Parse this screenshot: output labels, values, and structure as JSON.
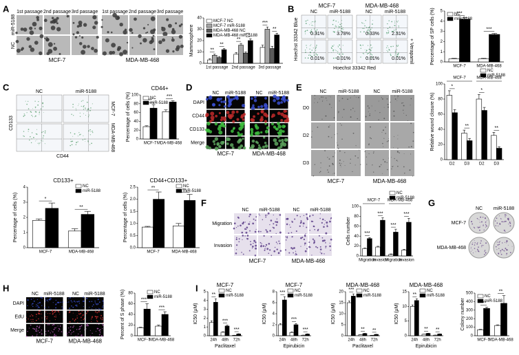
{
  "panel_letters": [
    "A",
    "B",
    "C",
    "D",
    "E",
    "F",
    "G",
    "H",
    "I"
  ],
  "photos": {
    "A": {
      "cols": [
        "1st passage",
        "2nd passage",
        "3rd passage",
        "1st passage",
        "2nd passage",
        "3rd passage"
      ],
      "rows": [
        "miR-5188",
        "NC"
      ],
      "cell_lines": [
        "MCF-7",
        "MDA-MB-468"
      ]
    },
    "B": {
      "cols": [
        "NC",
        "miR-5188",
        "NC",
        "miR-5188"
      ],
      "cell_lines": [
        "MCF-7",
        "MDA-MB-468"
      ],
      "percents": [
        [
          "0.31%",
          "3.78%",
          "0.33%",
          "2.31%"
        ],
        [
          "0.01%",
          "0.01%",
          "0.01%",
          "0.01%"
        ]
      ],
      "y_label": "Hoechst 33342 Blue",
      "x_label": "Hoechst 33342 Red",
      "row_label": "+ Verapamil"
    },
    "C": {
      "cols": [
        "NC",
        "miR-5188"
      ],
      "rows": [
        "MCF-7",
        "MDA-MB-468"
      ],
      "y_label": "CD133",
      "x_label": "CD44"
    },
    "D": {
      "cols": [
        "NC",
        "miR-5188",
        "NC",
        "miR-5188"
      ],
      "rows": [
        "DAPI",
        "CD44",
        "CD133",
        "Merge"
      ],
      "cell_lines": [
        "MCF-7",
        "MDA-MB-468"
      ]
    },
    "E": {
      "cols": [
        "NC",
        "miR-5188",
        "NC",
        "miR-5188"
      ],
      "rows": [
        "D0",
        "D2",
        "D3"
      ],
      "cell_lines": [
        "MCF-7",
        "MDA-MB-468"
      ]
    },
    "F": {
      "cols": [
        "NC",
        "miR-5188",
        "NC",
        "miR-5188"
      ],
      "rows": [
        "Migration",
        "Invasion"
      ],
      "cell_lines": [
        "MCF-7",
        "MDA-MB-468"
      ]
    },
    "G": {
      "cols": [
        "NC",
        "miR-5188"
      ],
      "rows": [
        "MCF-7",
        "MDA-MB-468"
      ]
    },
    "H": {
      "cols": [
        "NC",
        "miR-5188",
        "NC",
        "miR-5188"
      ],
      "rows": [
        "DAPI",
        "EdU",
        "Merge"
      ],
      "cell_lines": [
        "MCF-7",
        "MDA-MB-468"
      ]
    }
  },
  "chart_data": [
    {
      "type": "bar",
      "y_label": "Mammosphere",
      "categories": [
        "1st passage",
        "2nd passage",
        "3rd passage"
      ],
      "series": [
        {
          "name": "MCF-7 NC",
          "color": "#ffffff",
          "values": [
            3,
            8,
            14
          ],
          "errors": [
            1,
            1.5,
            2
          ]
        },
        {
          "name": "MCF-7 miR-5188",
          "color": "#a6a6a6",
          "values": [
            7,
            16,
            30
          ],
          "errors": [
            1,
            1.5,
            2
          ]
        },
        {
          "name": "MDA-MB-468 NC",
          "color": "#5a5a5a",
          "values": [
            5,
            9,
            13
          ],
          "errors": [
            1,
            1,
            2
          ]
        },
        {
          "name": "MDA-MB-468 miR-5188",
          "color": "#000000",
          "values": [
            12,
            20,
            25
          ],
          "errors": [
            1,
            1.5,
            1.5
          ]
        }
      ],
      "significance": [
        "**",
        "**",
        "**",
        "**",
        "***",
        "**"
      ],
      "ylim": [
        0,
        40
      ],
      "yticks": [
        0,
        10,
        20,
        30,
        40
      ],
      "legend": "top-left"
    },
    {
      "type": "bar",
      "y_label": "Percentage of SP cells (%)",
      "categories": [
        "MCF-7",
        "MDA-MB-468"
      ],
      "series": [
        {
          "name": "NC",
          "color": "#ffffff",
          "values": [
            0.3,
            0.3
          ],
          "errors": [
            0.05,
            0.05
          ]
        },
        {
          "name": "miR-5188",
          "color": "#000000",
          "values": [
            4.2,
            2.7
          ],
          "errors": [
            0.15,
            0.1
          ]
        }
      ],
      "significance": [
        "***",
        "***"
      ],
      "ylim": [
        0,
        5
      ],
      "yticks": [
        0,
        1,
        2,
        3,
        4,
        5
      ],
      "legend": "top-left"
    },
    {
      "type": "bar",
      "title": "CD44+",
      "y_label": "Percentage of cells (%)",
      "categories": [
        "MCF-7",
        "MDA-MB-468"
      ],
      "series": [
        {
          "name": "NC",
          "color": "#ffffff",
          "values": [
            28,
            62
          ],
          "errors": [
            2,
            4
          ]
        },
        {
          "name": "miR-5188",
          "color": "#000000",
          "values": [
            70,
            84
          ],
          "errors": [
            8,
            3
          ]
        }
      ],
      "significance": [
        "**",
        "***"
      ],
      "ylim": [
        0,
        100
      ],
      "yticks": [
        0,
        20,
        40,
        60,
        80,
        100
      ],
      "legend": "top-left"
    },
    {
      "type": "bar",
      "title": "CD133+",
      "y_label": "Percentage of cells (%)",
      "categories": [
        "MCF-7",
        "MDA-MB-468"
      ],
      "series": [
        {
          "name": "NC",
          "color": "#ffffff",
          "values": [
            1.8,
            1.1
          ],
          "errors": [
            0.1,
            0.15
          ]
        },
        {
          "name": "miR-5188",
          "color": "#000000",
          "values": [
            2.6,
            2.2
          ],
          "errors": [
            0.35,
            0.2
          ]
        }
      ],
      "significance": [
        "*",
        "**"
      ],
      "ylim": [
        0,
        4
      ],
      "yticks": [
        0,
        1,
        2,
        3,
        4
      ],
      "legend": "top-right"
    },
    {
      "type": "bar",
      "title": "CD44+CD133+",
      "y_label": "Percentage of cells (%)",
      "categories": [
        "MCF-7",
        "MDA-MB-468"
      ],
      "series": [
        {
          "name": "NC",
          "color": "#ffffff",
          "values": [
            0.85,
            0.9
          ],
          "errors": [
            0.03,
            0.1
          ]
        },
        {
          "name": "miR-5188",
          "color": "#000000",
          "values": [
            2.0,
            1.95
          ],
          "errors": [
            0.3,
            0.25
          ]
        }
      ],
      "significance": [
        "**",
        "**"
      ],
      "ylim": [
        0,
        2.5
      ],
      "yticks": [
        {
          "value": 0,
          "label": "0.0"
        },
        {
          "value": 0.5,
          "label": "0.5"
        },
        {
          "value": 1,
          "label": "1.0"
        },
        {
          "value": 1.5,
          "label": "1.5"
        },
        {
          "value": 2,
          "label": "2.0"
        },
        {
          "value": 2.5,
          "label": "2.5"
        }
      ],
      "legend": "top-right"
    },
    {
      "type": "bar",
      "y_label": "Relative wound closure (%)",
      "categories": [
        "D2",
        "D3",
        "D2",
        "D3"
      ],
      "groups": [
        "MCF-7",
        "MDA-MB-468"
      ],
      "series": [
        {
          "name": "NC",
          "color": "#ffffff",
          "values": [
            85,
            35,
            80,
            32
          ],
          "errors": [
            6,
            4,
            6,
            4
          ]
        },
        {
          "name": "miR-5188",
          "color": "#000000",
          "values": [
            62,
            25,
            65,
            15
          ],
          "errors": [
            4,
            3,
            4,
            2
          ]
        }
      ],
      "significance": [
        "*",
        "**",
        "*",
        "**"
      ],
      "ylim": [
        0,
        100
      ],
      "yticks": [
        0,
        20,
        40,
        60,
        80,
        100
      ],
      "legend": "top-right"
    },
    {
      "type": "bar",
      "y_label": "Cells number",
      "categories": [
        "Migration",
        "Invasion",
        "Migration",
        "Invasion"
      ],
      "groups": [
        "MCF-7",
        "MDA-MB-468"
      ],
      "series": [
        {
          "name": "NC",
          "color": "#ffffff",
          "values": [
            15,
            18,
            3,
            12
          ],
          "errors": [
            1,
            1.5,
            1,
            1.5
          ]
        },
        {
          "name": "miR-5188",
          "color": "#000000",
          "values": [
            35,
            72,
            48,
            68
          ],
          "errors": [
            2,
            5,
            6,
            8
          ]
        }
      ],
      "significance": [
        "***",
        "***",
        "***",
        "***"
      ],
      "ylim": [
        0,
        100
      ],
      "yticks": [
        0,
        20,
        40,
        60,
        80,
        100
      ],
      "legend": "top-right"
    },
    {
      "type": "bar",
      "y_label": "Percent of S phase (%)",
      "categories": [
        "MCF-7",
        "MDA-MB-468"
      ],
      "series": [
        {
          "name": "NC",
          "color": "#ffffff",
          "values": [
            15,
            18
          ],
          "errors": [
            1,
            2
          ]
        },
        {
          "name": "miR-5188",
          "color": "#000000",
          "values": [
            50,
            40
          ],
          "errors": [
            10,
            5
          ]
        }
      ],
      "significance": [
        "***",
        "***"
      ],
      "ylim": [
        0,
        80
      ],
      "yticks": [
        0,
        20,
        40,
        60,
        80
      ],
      "legend": "top-right"
    },
    {
      "type": "bar",
      "title": "MCF-7",
      "y_label": "IC50 (μM)",
      "x_label": "Paclitaxel",
      "categories": [
        "24h",
        "48h",
        "72h"
      ],
      "series": [
        {
          "name": "NC",
          "color": "#ffffff",
          "values": [
            1.5,
            0.4,
            0.05
          ],
          "errors": [
            0.2,
            0.05,
            0.01
          ]
        },
        {
          "name": "miR-5188",
          "color": "#000000",
          "values": [
            3.8,
            1.1,
            0.2
          ],
          "errors": [
            0.4,
            0.1,
            0.03
          ]
        }
      ],
      "significance": [
        "**",
        "***",
        "***"
      ],
      "ylim": [
        0,
        5
      ],
      "yticks": [
        0,
        1,
        2,
        3,
        4,
        5
      ],
      "legend": "top-right"
    },
    {
      "type": "bar",
      "title": "MCF-7",
      "y_label": "IC50 (μM)",
      "x_label": "Epirubicin",
      "categories": [
        "24h",
        "48h",
        "72h"
      ],
      "series": [
        {
          "name": "NC",
          "color": "#ffffff",
          "values": [
            2,
            0.6,
            0.1
          ],
          "errors": [
            0.2,
            0.1,
            0.02
          ]
        },
        {
          "name": "miR-5188",
          "color": "#000000",
          "values": [
            6.5,
            2.0,
            0.3
          ],
          "errors": [
            0.6,
            0.2,
            0.05
          ]
        }
      ],
      "significance": [
        "***",
        "***",
        "***"
      ],
      "ylim": [
        0,
        8
      ],
      "yticks": [
        0,
        2,
        4,
        6,
        8
      ],
      "legend": "top-right"
    },
    {
      "type": "bar",
      "title": "MDA-MB-468",
      "y_label": "IC50 (μM)",
      "x_label": "Paclitaxel",
      "categories": [
        "24h",
        "48h",
        "72h"
      ],
      "series": [
        {
          "name": "NC",
          "color": "#ffffff",
          "values": [
            15,
            0.5,
            0.2
          ],
          "errors": [
            0.8,
            0.05,
            0.03
          ]
        },
        {
          "name": "miR-5188",
          "color": "#000000",
          "values": [
            18,
            1.0,
            0.6
          ],
          "errors": [
            1,
            0.1,
            0.05
          ]
        }
      ],
      "significance": [
        "***",
        "**",
        "**"
      ],
      "ylim": [
        0,
        20
      ],
      "yticks": [
        0,
        5,
        10,
        15,
        20
      ],
      "legend": "top-right"
    },
    {
      "type": "bar",
      "title": "MDA-MB-468",
      "y_label": "IC50 (μM)",
      "x_label": "Epirubicin",
      "categories": [
        "24h",
        "48h",
        "72h"
      ],
      "series": [
        {
          "name": "NC",
          "color": "#ffffff",
          "values": [
            10,
            0.5,
            0.2
          ],
          "errors": [
            0.5,
            0.05,
            0.03
          ]
        },
        {
          "name": "miR-5188",
          "color": "#000000",
          "values": [
            12,
            0.8,
            0.6
          ],
          "errors": [
            0.6,
            0.05,
            0.05
          ]
        }
      ],
      "significance": [
        "**",
        "**",
        "**"
      ],
      "ylim": [
        0,
        15
      ],
      "yticks": [
        0,
        5,
        10,
        15
      ],
      "legend": "top-right"
    },
    {
      "type": "bar",
      "y_label": "Colony number",
      "categories": [
        "MCF-7",
        "MDA-MB-468"
      ],
      "series": [
        {
          "name": "NC",
          "color": "#ffffff",
          "values": [
            70,
            120
          ],
          "errors": [
            5,
            8
          ]
        },
        {
          "name": "miR-5188",
          "color": "#000000",
          "values": [
            320,
            380
          ],
          "errors": [
            15,
            90
          ]
        }
      ],
      "significance": [
        "***",
        "**"
      ],
      "ylim": [
        0,
        500
      ],
      "yticks": [
        0,
        100,
        200,
        300,
        400,
        500
      ],
      "legend": "top-left"
    }
  ]
}
